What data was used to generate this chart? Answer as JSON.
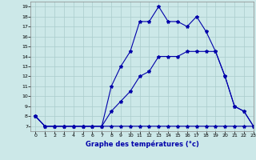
{
  "title": "Graphe des températures (°c)",
  "bg_color": "#cce8e8",
  "grid_color": "#aacccc",
  "line_color": "#0000aa",
  "marker": "*",
  "marker_size": 3,
  "xlim": [
    -0.5,
    23
  ],
  "ylim": [
    6.5,
    19.5
  ],
  "yticks": [
    7,
    8,
    9,
    10,
    11,
    12,
    13,
    14,
    15,
    16,
    17,
    18,
    19
  ],
  "xticks": [
    0,
    1,
    2,
    3,
    4,
    5,
    6,
    7,
    8,
    9,
    10,
    11,
    12,
    13,
    14,
    15,
    16,
    17,
    18,
    19,
    20,
    21,
    22,
    23
  ],
  "line1_x": [
    0,
    1,
    2,
    3,
    4,
    5,
    6,
    7,
    8,
    9,
    10,
    11,
    12,
    13,
    14,
    15,
    16,
    17,
    18,
    19,
    20,
    21,
    22,
    23
  ],
  "line1_y": [
    8,
    7,
    7,
    7,
    7,
    7,
    7,
    7,
    7,
    7,
    7,
    7,
    7,
    7,
    7,
    7,
    7,
    7,
    7,
    7,
    7,
    7,
    7,
    7
  ],
  "line2_x": [
    0,
    1,
    2,
    3,
    4,
    5,
    6,
    7,
    8,
    9,
    10,
    11,
    12,
    13,
    14,
    15,
    16,
    17,
    18,
    19,
    20,
    21,
    22,
    23
  ],
  "line2_y": [
    8,
    7,
    7,
    7,
    7,
    7,
    7,
    7,
    11,
    13,
    14.5,
    17.5,
    17.5,
    19,
    17.5,
    17.5,
    17,
    18,
    16.5,
    14.5,
    12,
    9,
    8.5,
    7
  ],
  "line3_x": [
    0,
    1,
    2,
    3,
    4,
    5,
    6,
    7,
    8,
    9,
    10,
    11,
    12,
    13,
    14,
    15,
    16,
    17,
    18,
    19,
    20,
    21,
    22,
    23
  ],
  "line3_y": [
    8,
    7,
    7,
    7,
    7,
    7,
    7,
    7,
    8.5,
    9.5,
    10.5,
    12,
    12.5,
    14,
    14,
    14,
    14.5,
    14.5,
    14.5,
    14.5,
    12,
    9,
    8.5,
    7
  ]
}
